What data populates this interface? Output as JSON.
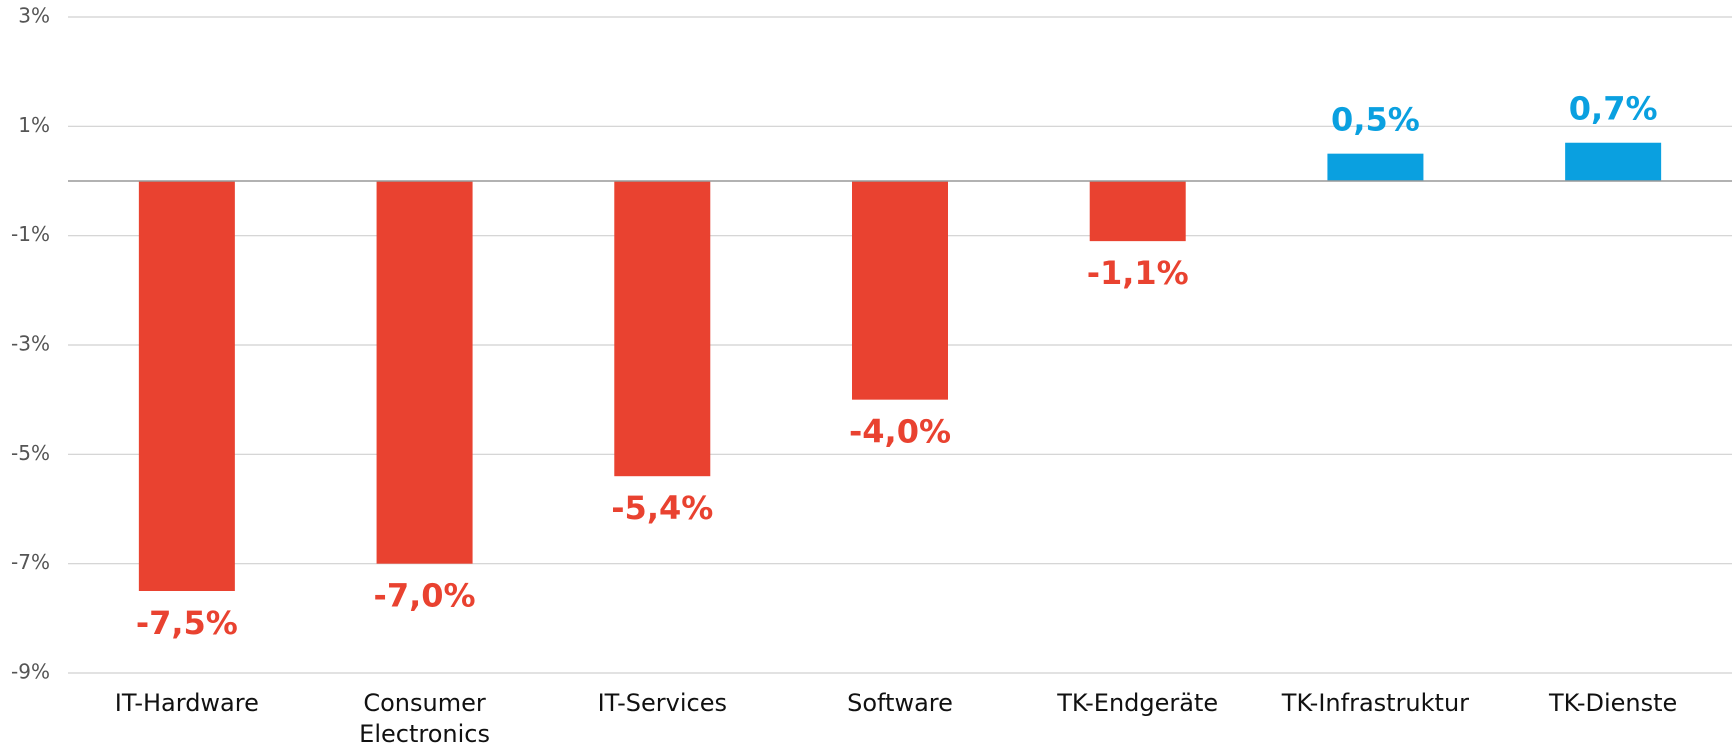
{
  "chart_data": {
    "type": "bar",
    "categories": [
      "IT-Hardware",
      "Consumer Electronics",
      "IT-Services",
      "Software",
      "TK-Endgeräte",
      "TK-Infrastruktur",
      "TK-Dienste"
    ],
    "values": [
      -7.5,
      -7.0,
      -5.4,
      -4.0,
      -1.1,
      0.5,
      0.7
    ],
    "value_labels": [
      "-7,5%",
      "-7,0%",
      "-5,4%",
      "-4,0%",
      "-1,1%",
      "0,5%",
      "0,7%"
    ],
    "colors": [
      "#e94230",
      "#e94230",
      "#e94230",
      "#e94230",
      "#e94230",
      "#0aa0e0",
      "#0aa0e0"
    ],
    "ylim": [
      -9,
      3
    ],
    "yticks": [
      {
        "value": -9,
        "label": "-9%"
      },
      {
        "value": -7,
        "label": "-7%"
      },
      {
        "value": -5,
        "label": "-5%"
      },
      {
        "value": -3,
        "label": "-3%"
      },
      {
        "value": -1,
        "label": "-1%"
      },
      {
        "value": 1,
        "label": "1%"
      },
      {
        "value": 3,
        "label": "3%"
      }
    ],
    "grid": true
  }
}
